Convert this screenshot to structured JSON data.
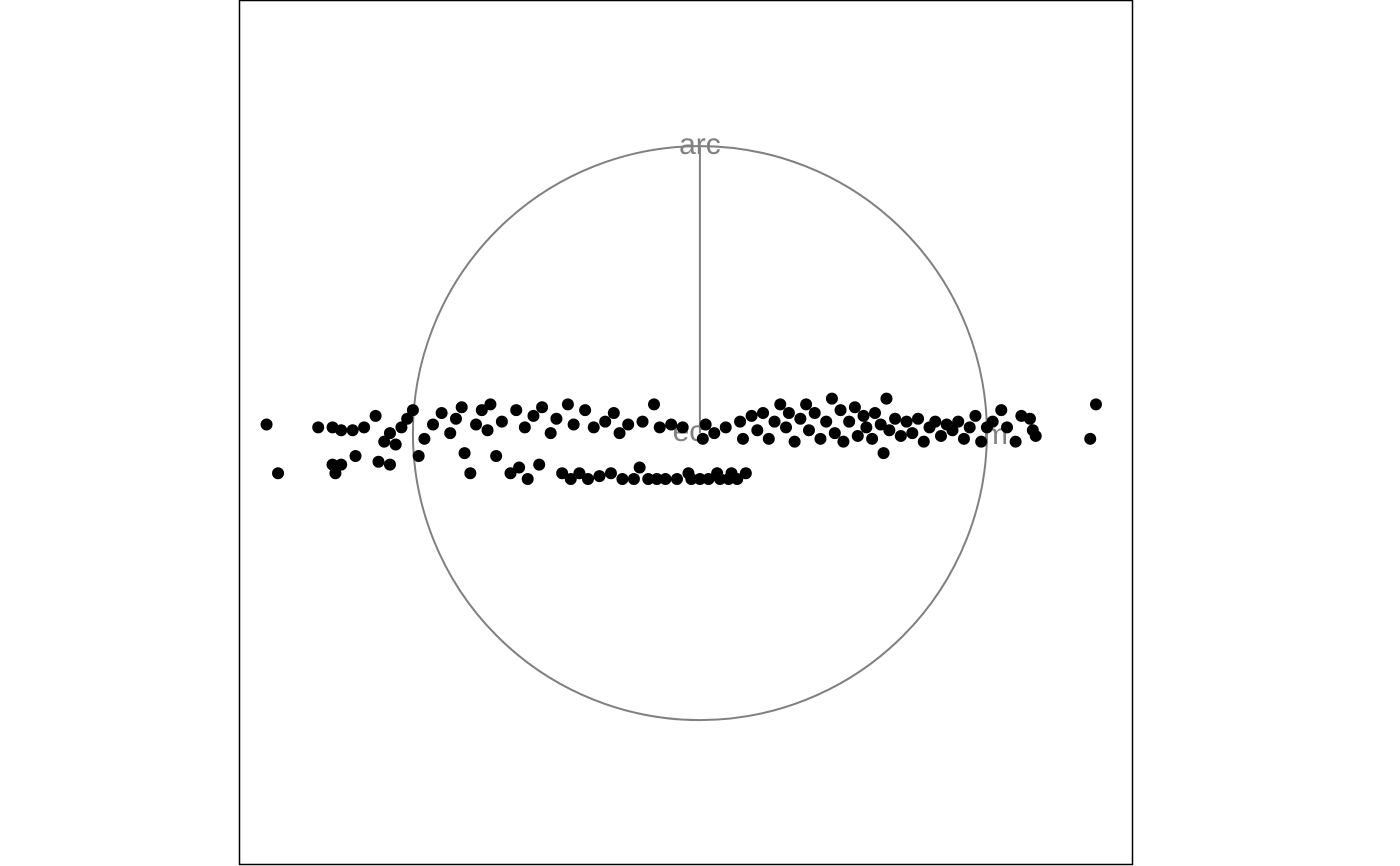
{
  "chart_data": {
    "type": "scatter",
    "anchors": [
      {
        "label": "arc",
        "x": 0,
        "y": 1
      },
      {
        "label": "ec",
        "x": -0.04,
        "y": 0
      },
      {
        "label": "m",
        "x": 1.03,
        "y": -0.01
      }
    ],
    "color": "#000000",
    "xlim": [
      -1.606,
      1.509
    ],
    "ylim": [
      -1.505,
      1.509
    ],
    "x": [
      -1.51,
      -1.33,
      -1.28,
      -1.25,
      -1.21,
      -1.17,
      -1.13,
      -1.47,
      -1.28,
      -1.25,
      -1.27,
      -1.2,
      -1.12,
      -1.08,
      -1.1,
      -1.08,
      -1.06,
      -1.04,
      -1.02,
      -1.0,
      -0.98,
      -0.96,
      -0.93,
      -0.9,
      -0.87,
      -0.85,
      -0.83,
      -0.82,
      -0.8,
      -0.78,
      -0.76,
      -0.74,
      -0.73,
      -0.71,
      -0.69,
      -0.66,
      -0.64,
      -0.63,
      -0.61,
      -0.6,
      -0.58,
      -0.56,
      -0.55,
      -0.52,
      -0.5,
      -0.48,
      -0.46,
      -0.45,
      -0.44,
      -0.42,
      -0.4,
      -0.39,
      -0.37,
      -0.35,
      -0.33,
      -0.31,
      -0.3,
      -0.28,
      -0.27,
      -0.25,
      -0.23,
      -0.21,
      -0.2,
      -0.18,
      -0.16,
      -0.15,
      -0.14,
      -0.12,
      -0.1,
      -0.08,
      -0.06,
      -0.04,
      -0.03,
      0.0,
      0.01,
      0.02,
      0.03,
      0.05,
      0.06,
      0.07,
      0.09,
      0.1,
      0.11,
      0.13,
      0.14,
      0.15,
      0.16,
      0.18,
      0.2,
      0.22,
      0.24,
      0.26,
      0.28,
      0.3,
      0.31,
      0.33,
      0.35,
      0.37,
      0.38,
      0.4,
      0.42,
      0.44,
      0.46,
      0.47,
      0.49,
      0.5,
      0.52,
      0.54,
      0.55,
      0.57,
      0.58,
      0.6,
      0.61,
      0.63,
      0.64,
      0.65,
      0.66,
      0.68,
      0.7,
      0.72,
      0.74,
      0.76,
      0.78,
      0.8,
      0.82,
      0.84,
      0.86,
      0.88,
      0.9,
      0.92,
      0.94,
      0.96,
      0.98,
      1.0,
      1.02,
      1.05,
      1.07,
      1.1,
      1.12,
      1.15,
      1.16,
      1.17,
      1.36,
      1.38
    ],
    "values": [
      0.03,
      0.02,
      0.02,
      0.01,
      0.01,
      0.02,
      0.06,
      -0.14,
      -0.11,
      -0.11,
      -0.14,
      -0.08,
      -0.1,
      -0.11,
      -0.03,
      0.0,
      -0.04,
      0.02,
      0.05,
      0.08,
      -0.08,
      -0.02,
      0.03,
      0.07,
      0.0,
      0.05,
      0.09,
      -0.07,
      -0.14,
      0.03,
      0.08,
      0.01,
      0.1,
      -0.08,
      0.04,
      -0.14,
      0.08,
      -0.12,
      0.02,
      -0.16,
      0.06,
      -0.11,
      0.09,
      0.0,
      0.05,
      -0.14,
      0.1,
      -0.16,
      0.03,
      -0.14,
      0.08,
      -0.16,
      0.02,
      -0.15,
      0.04,
      -0.14,
      0.07,
      0.0,
      -0.16,
      0.03,
      -0.16,
      -0.12,
      0.04,
      -0.16,
      0.1,
      -0.16,
      0.02,
      -0.16,
      0.03,
      -0.16,
      0.02,
      -0.14,
      -0.16,
      -0.16,
      -0.02,
      0.03,
      -0.16,
      0.0,
      -0.14,
      -0.16,
      0.02,
      -0.16,
      -0.14,
      -0.16,
      0.04,
      -0.02,
      -0.14,
      0.06,
      0.01,
      0.07,
      -0.02,
      0.04,
      0.1,
      0.02,
      0.07,
      -0.03,
      0.05,
      0.1,
      0.01,
      0.07,
      -0.02,
      0.04,
      0.12,
      0.0,
      0.08,
      -0.03,
      0.04,
      0.09,
      -0.01,
      0.06,
      0.02,
      -0.02,
      0.07,
      0.03,
      -0.07,
      0.12,
      0.01,
      0.05,
      -0.01,
      0.04,
      0.0,
      0.05,
      -0.03,
      0.02,
      0.04,
      -0.01,
      0.03,
      0.01,
      0.04,
      -0.02,
      0.02,
      0.06,
      -0.03,
      0.02,
      0.04,
      0.08,
      0.02,
      -0.03,
      0.06,
      0.05,
      0.01,
      -0.01,
      -0.02,
      0.1
    ]
  }
}
